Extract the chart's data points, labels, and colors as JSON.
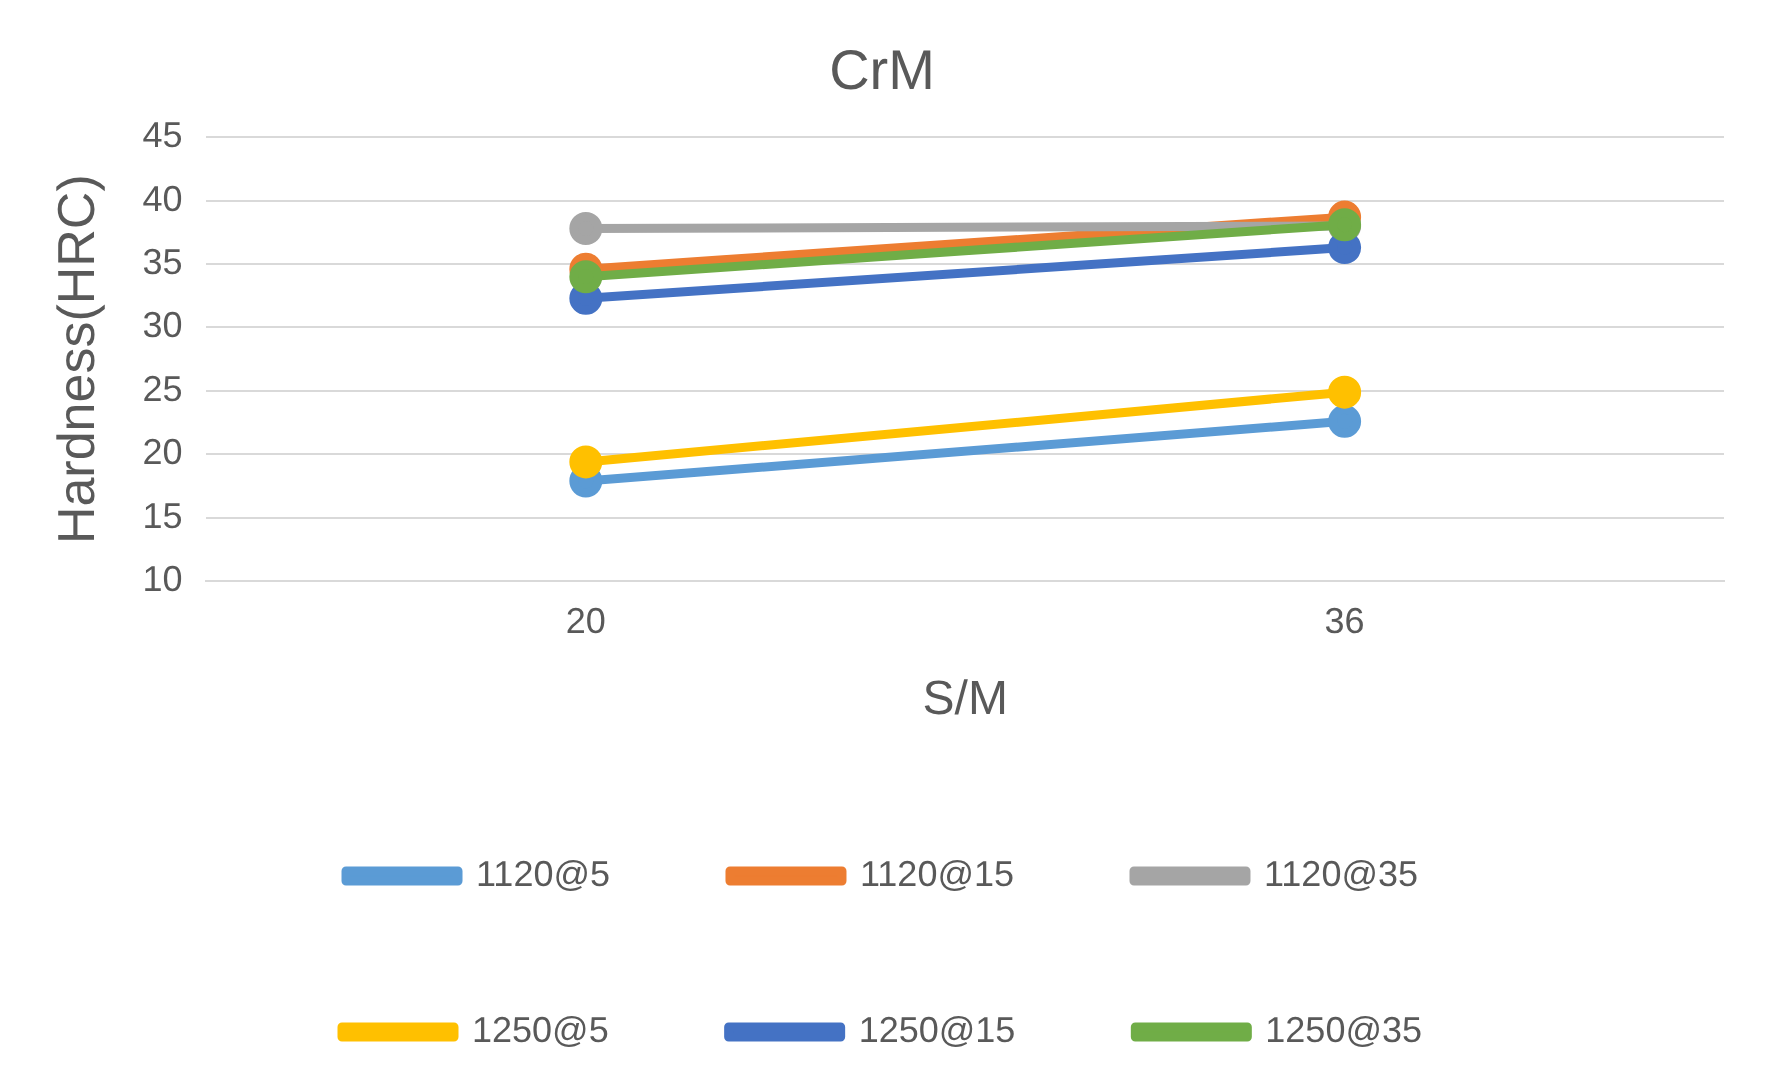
{
  "chart_data": {
    "type": "line",
    "title": "CrM",
    "xlabel": "S/M",
    "ylabel": "Hardness(HRC)",
    "categories": [
      "20",
      "36"
    ],
    "series": [
      {
        "name": "1120@5",
        "color": "#5b9bd5",
        "values": [
          17.9,
          22.6
        ]
      },
      {
        "name": "1120@15",
        "color": "#ed7d31",
        "values": [
          34.6,
          38.7
        ]
      },
      {
        "name": "1120@35",
        "color": "#a5a5a5",
        "values": [
          37.8,
          38.0
        ]
      },
      {
        "name": "1250@5",
        "color": "#ffc000",
        "values": [
          19.4,
          24.9
        ]
      },
      {
        "name": "1250@15",
        "color": "#4472c4",
        "values": [
          32.3,
          36.3
        ]
      },
      {
        "name": "1250@35",
        "color": "#70ad47",
        "values": [
          34.0,
          38.1
        ]
      }
    ],
    "ylim": [
      10,
      45
    ],
    "yticks": [
      10,
      15,
      20,
      25,
      30,
      35,
      40,
      45
    ],
    "grid": "y",
    "legend": "bottom",
    "marker": "circle",
    "line_style": "solid"
  }
}
